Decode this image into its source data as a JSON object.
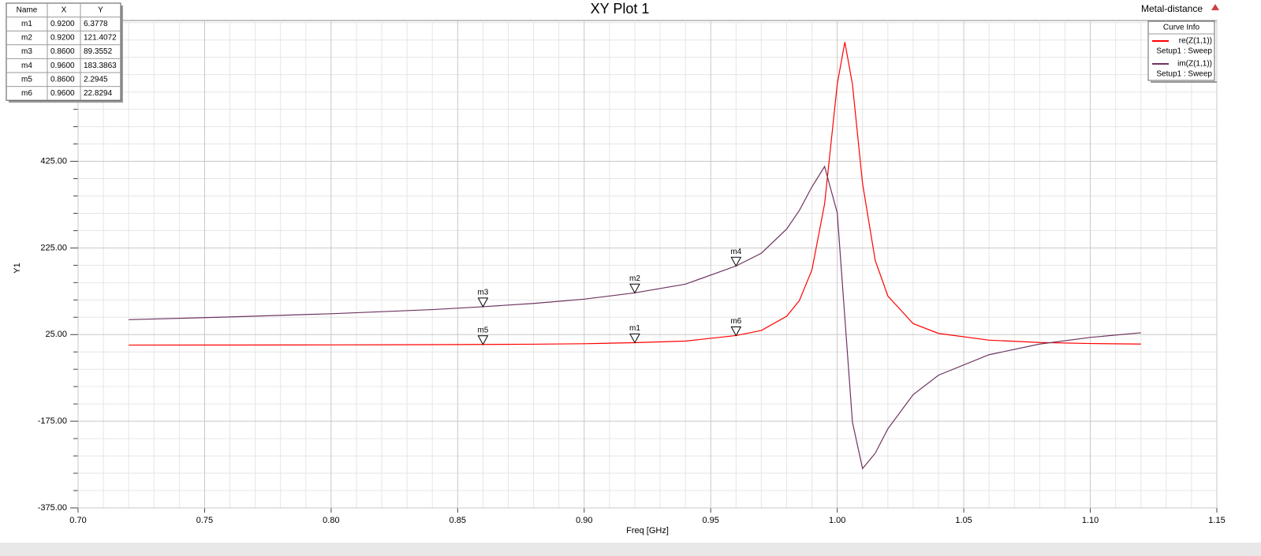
{
  "chart_data": {
    "type": "line",
    "title": "XY Plot 1",
    "corner_label": "Metal-distance",
    "xlabel": "Freq [GHz]",
    "ylabel": "Y1",
    "xlim": [
      0.7,
      1.15
    ],
    "ylim": [
      -375,
      750
    ],
    "xticks": [
      {
        "value": 0.7,
        "label": "0.70"
      },
      {
        "value": 0.75,
        "label": "0.75"
      },
      {
        "value": 0.8,
        "label": "0.80"
      },
      {
        "value": 0.85,
        "label": "0.85"
      },
      {
        "value": 0.9,
        "label": "0.90"
      },
      {
        "value": 0.95,
        "label": "0.95"
      },
      {
        "value": 1.0,
        "label": "1.00"
      },
      {
        "value": 1.05,
        "label": "1.05"
      },
      {
        "value": 1.1,
        "label": "1.10"
      },
      {
        "value": 1.15,
        "label": "1.15"
      }
    ],
    "yticks": [
      {
        "value": -375,
        "label": "-375.00"
      },
      {
        "value": -175,
        "label": "-175.00"
      },
      {
        "value": 25,
        "label": "25.00"
      },
      {
        "value": 225,
        "label": "225.00"
      },
      {
        "value": 425,
        "label": "425.00"
      }
    ],
    "grid": true,
    "legend_title": "Curve Info",
    "legend_position": "top-right",
    "x": [
      0.72,
      0.76,
      0.8,
      0.84,
      0.86,
      0.88,
      0.9,
      0.92,
      0.94,
      0.96,
      0.97,
      0.98,
      0.985,
      0.99,
      0.995,
      1.0,
      1.003,
      1.006,
      1.01,
      1.015,
      1.02,
      1.03,
      1.04,
      1.06,
      1.08,
      1.1,
      1.12
    ],
    "series": [
      {
        "name": "re(Z(1,1))",
        "setup": "Setup1 : Sweep",
        "color": "#ff0000",
        "values": [
          0.79,
          0.96,
          1.25,
          1.77,
          2.29,
          2.88,
          3.98,
          6.38,
          10.04,
          22.83,
          34.5,
          67.3,
          103.2,
          174.3,
          326.6,
          603.0,
          700.3,
          603.0,
          373.8,
          196.4,
          114.0,
          50.3,
          27.8,
          12.2,
          6.85,
          4.44,
          3.15
        ]
      },
      {
        "name": "im(Z(1,1))",
        "setup": "Setup1 : Sweep",
        "color": "#6e3460",
        "values": [
          59.5,
          65.7,
          73.2,
          82.7,
          89.36,
          97.0,
          106.8,
          121.41,
          141.4,
          183.39,
          212.8,
          268.6,
          311.3,
          366.1,
          413.0,
          306.0,
          64.4,
          -177.1,
          -284.3,
          -248.9,
          -192.4,
          -113.6,
          -68.7,
          -21.4,
          3.2,
          18.5,
          29.2
        ]
      }
    ],
    "marker_table": {
      "header": [
        "Name",
        "X",
        "Y"
      ],
      "rows": [
        {
          "name": "m1",
          "x": {
            "value": 0.92,
            "label": "0.9200"
          },
          "y": {
            "value": 6.3778,
            "label": "6.3778"
          }
        },
        {
          "name": "m2",
          "x": {
            "value": 0.92,
            "label": "0.9200"
          },
          "y": {
            "value": 121.4072,
            "label": "121.4072"
          }
        },
        {
          "name": "m3",
          "x": {
            "value": 0.86,
            "label": "0.8600"
          },
          "y": {
            "value": 89.3552,
            "label": "89.3552"
          }
        },
        {
          "name": "m4",
          "x": {
            "value": 0.96,
            "label": "0.9600"
          },
          "y": {
            "value": 183.3863,
            "label": "183.3863"
          }
        },
        {
          "name": "m5",
          "x": {
            "value": 0.86,
            "label": "0.8600"
          },
          "y": {
            "value": 2.2945,
            "label": "2.2945"
          }
        },
        {
          "name": "m6",
          "x": {
            "value": 0.96,
            "label": "0.9600"
          },
          "y": {
            "value": 22.8294,
            "label": "22.8294"
          }
        }
      ]
    }
  }
}
